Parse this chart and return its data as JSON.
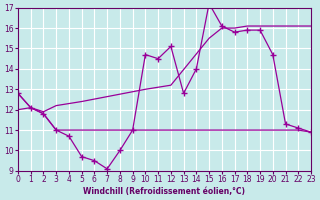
{
  "background_color": "#c8eaea",
  "grid_color": "#ffffff",
  "line_color": "#990099",
  "xlabel": "Windchill (Refroidissement éolien,°C)",
  "xlabel_color": "#660066",
  "tick_color": "#660066",
  "ylim": [
    9,
    17
  ],
  "xlim": [
    0,
    23
  ],
  "yticks": [
    9,
    10,
    11,
    12,
    13,
    14,
    15,
    16,
    17
  ],
  "xticks": [
    0,
    1,
    2,
    3,
    4,
    5,
    6,
    7,
    8,
    9,
    10,
    11,
    12,
    13,
    14,
    15,
    16,
    17,
    18,
    19,
    20,
    21,
    22,
    23
  ],
  "line1_x": [
    0,
    1,
    2,
    3,
    4,
    5,
    6,
    7,
    8,
    9,
    10,
    11,
    12,
    13,
    14,
    15,
    16,
    17,
    18,
    19,
    20,
    21,
    22,
    23
  ],
  "line1_y": [
    12.8,
    12.1,
    11.8,
    11.0,
    10.7,
    9.7,
    9.5,
    9.1,
    10.0,
    11.0,
    14.7,
    14.5,
    15.1,
    12.8,
    14.0,
    17.2,
    16.1,
    15.8,
    15.9,
    15.9,
    14.7,
    11.3,
    11.1,
    10.9
  ],
  "line2_x": [
    0,
    1,
    2,
    3,
    5,
    10,
    12,
    13,
    15,
    16,
    17,
    18,
    20,
    21,
    22,
    23
  ],
  "line2_y": [
    12.8,
    12.1,
    11.8,
    11.0,
    11.0,
    11.0,
    11.0,
    11.0,
    11.0,
    11.0,
    11.0,
    11.0,
    11.0,
    11.0,
    11.0,
    10.9
  ],
  "line3_x": [
    0,
    1,
    2,
    3,
    5,
    10,
    12,
    15,
    16,
    17,
    18,
    19,
    20,
    21,
    22,
    23
  ],
  "line3_y": [
    12.0,
    12.1,
    11.9,
    12.2,
    12.4,
    13.0,
    13.2,
    15.5,
    16.0,
    16.0,
    16.1,
    16.1,
    16.1,
    16.1,
    16.1,
    16.1
  ]
}
